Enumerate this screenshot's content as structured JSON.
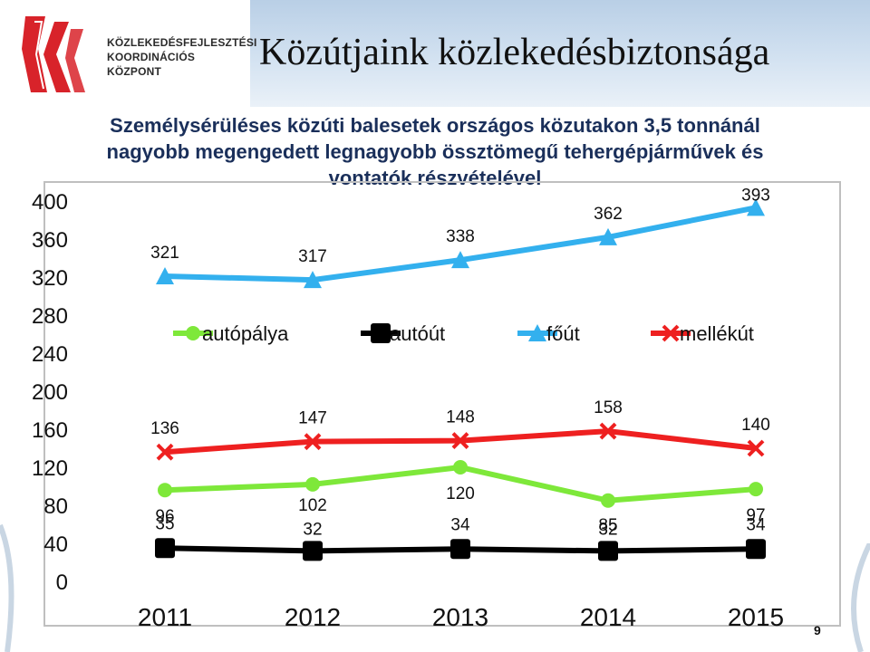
{
  "logo": {
    "line1": "KÖZLEKEDÉSFEJLESZTÉSI",
    "line2": "KOORDINÁCIÓS",
    "line3": "KÖZPONT"
  },
  "slide_title": "Közútjaink közlekedésbiztonsága",
  "page_number": "9",
  "colors": {
    "autopalya": "#7ee83a",
    "autout": "#000000",
    "fout": "#33b0ee",
    "mellekut": "#ee2020"
  },
  "chart_data": {
    "type": "line",
    "title_lines": [
      "Személysérüléses közúti balesetek országos közutakon 3,5 tonnánál",
      "nagyobb megengedett legnagyobb össztömegű tehergépjárművek és",
      "vontatók részvételével"
    ],
    "categories": [
      "2011",
      "2012",
      "2013",
      "2014",
      "2015"
    ],
    "ylim": [
      0,
      400
    ],
    "yticks": [
      0,
      40,
      80,
      120,
      160,
      200,
      240,
      280,
      320,
      360,
      400
    ],
    "grid": false,
    "legend_position": "middle",
    "series": [
      {
        "name": "autópálya",
        "key": "autopalya",
        "marker": "circle",
        "values": [
          96,
          102,
          120,
          85,
          97
        ]
      },
      {
        "name": "autóút",
        "key": "autout",
        "marker": "square",
        "values": [
          35,
          32,
          34,
          32,
          34
        ]
      },
      {
        "name": "főút",
        "key": "fout",
        "marker": "triangle",
        "values": [
          321,
          317,
          338,
          362,
          393
        ]
      },
      {
        "name": "mellékút",
        "key": "mellekut",
        "marker": "x",
        "values": [
          136,
          147,
          148,
          158,
          140
        ]
      }
    ]
  }
}
